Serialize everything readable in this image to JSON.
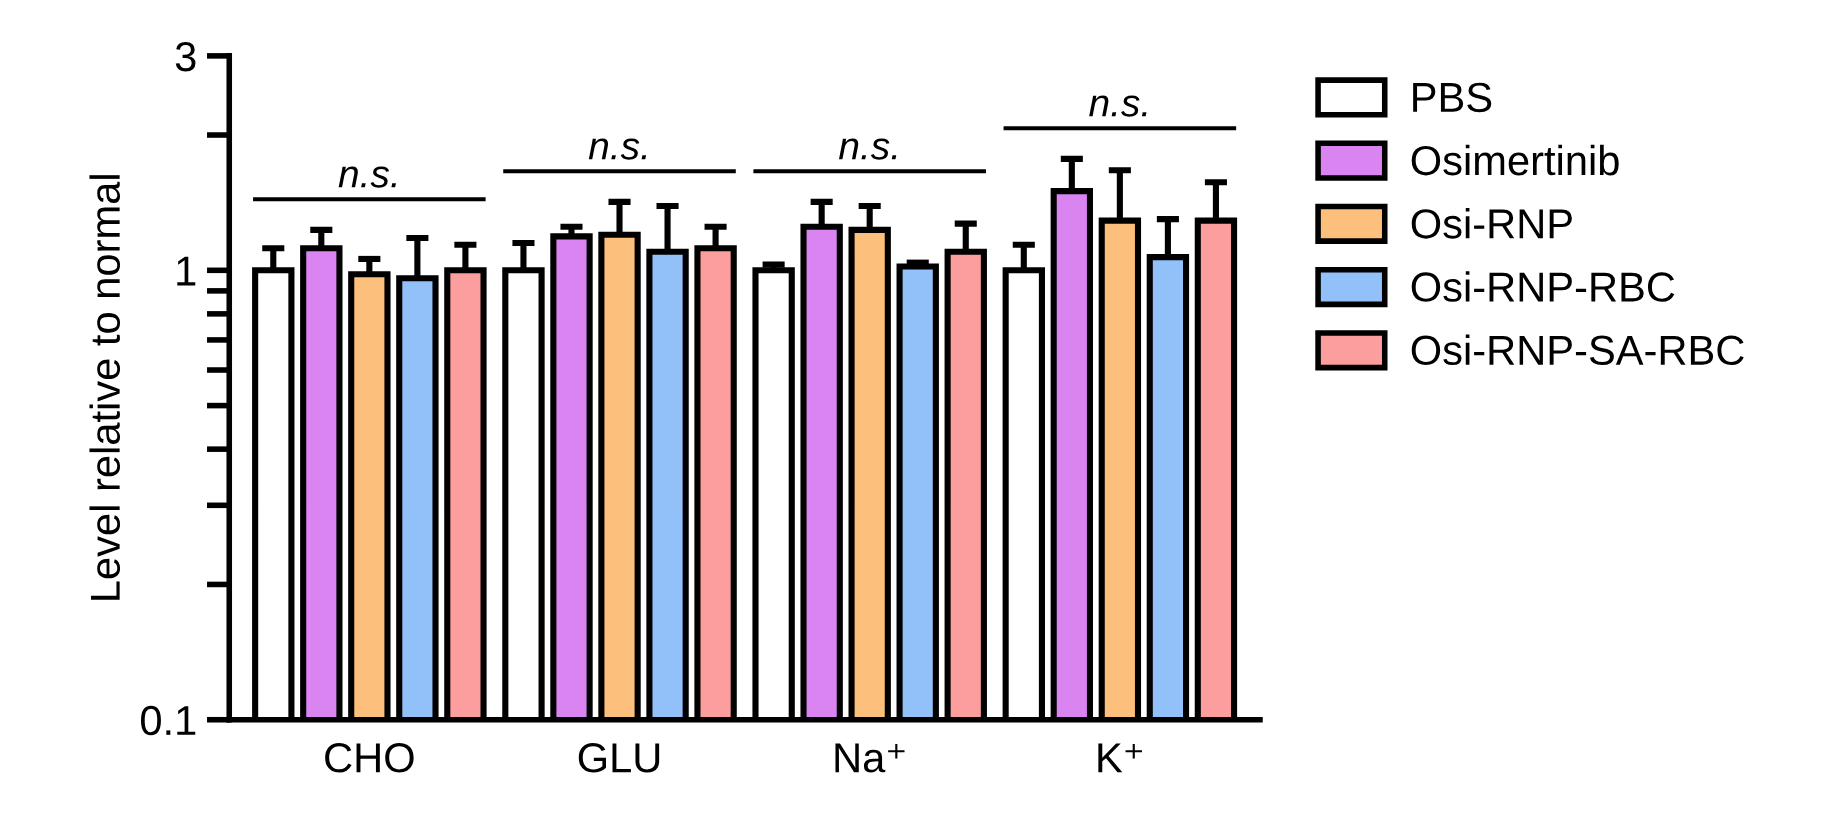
{
  "chart_data": {
    "type": "bar",
    "ylabel": "Level relative to normal",
    "categories": [
      "CHO",
      "GLU",
      "Na⁺",
      "K⁺"
    ],
    "series": [
      {
        "name": "PBS",
        "color": "#ffffff",
        "values": [
          1.0,
          1.0,
          1.0,
          1.0
        ],
        "errors": [
          [
            1.0,
            1.12
          ],
          [
            1.0,
            1.15
          ],
          [
            1.0,
            1.03
          ],
          [
            1.0,
            1.14
          ]
        ]
      },
      {
        "name": "Osimertinib",
        "color": "#da84f2",
        "values": [
          1.12,
          1.19,
          1.25,
          1.5
        ],
        "errors": [
          [
            1.12,
            1.23
          ],
          [
            1.19,
            1.25
          ],
          [
            1.25,
            1.42
          ],
          [
            1.5,
            1.77
          ]
        ]
      },
      {
        "name": "Osi-RNP",
        "color": "#fdbf7c",
        "values": [
          0.98,
          1.2,
          1.23,
          1.29
        ],
        "errors": [
          [
            0.98,
            1.06
          ],
          [
            1.2,
            1.42
          ],
          [
            1.23,
            1.39
          ],
          [
            1.29,
            1.67
          ]
        ]
      },
      {
        "name": "Osi-RNP-RBC",
        "color": "#92c0f8",
        "values": [
          0.96,
          1.1,
          1.02,
          1.07
        ],
        "errors": [
          [
            0.96,
            1.18
          ],
          [
            1.1,
            1.39
          ],
          [
            1.02,
            1.04
          ],
          [
            1.07,
            1.3
          ]
        ]
      },
      {
        "name": "Osi-RNP-SA-RBC",
        "color": "#fc9e9e",
        "values": [
          1.0,
          1.12,
          1.1,
          1.29
        ],
        "errors": [
          [
            1.0,
            1.14
          ],
          [
            1.12,
            1.25
          ],
          [
            1.1,
            1.27
          ],
          [
            1.29,
            1.57
          ]
        ]
      }
    ],
    "log": "y",
    "ylim": [
      0.1,
      3
    ],
    "yticks": [
      0.1,
      {
        "value": 0.2,
        "label": null
      },
      {
        "value": 0.3,
        "label": null
      },
      {
        "value": 0.4,
        "label": null
      },
      {
        "value": 0.5,
        "label": null
      },
      {
        "value": 0.6,
        "label": null
      },
      {
        "value": 0.7,
        "label": null
      },
      {
        "value": 0.8,
        "label": null
      },
      {
        "value": 0.9,
        "label": null
      },
      1,
      {
        "value": 2,
        "label": null
      },
      3
    ],
    "annotations": [
      "n.s.",
      "n.s.",
      "n.s.",
      "n.s."
    ],
    "grid": false,
    "legend": "right"
  }
}
